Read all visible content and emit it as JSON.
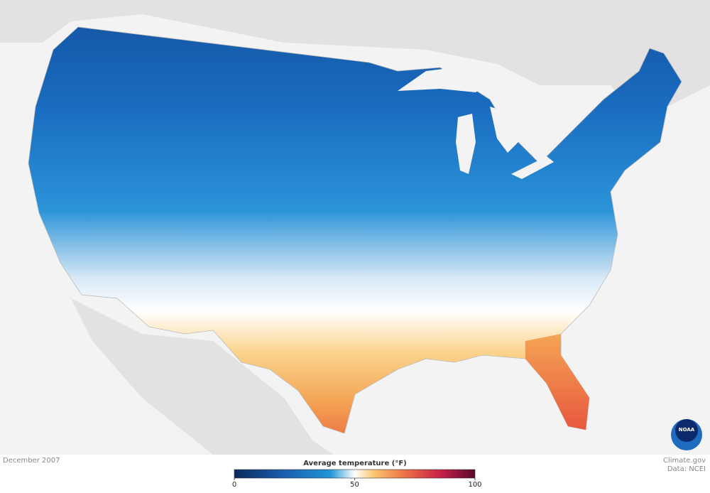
{
  "map": {
    "date": "December 2007",
    "legend_title": "Average temperature (°F)",
    "credit": "Climate.gov",
    "source": "Data: NCEI",
    "logo": "NOAA",
    "colorbar": {
      "range": [
        0,
        100
      ],
      "ticks": [
        0,
        50,
        100
      ]
    }
  }
}
